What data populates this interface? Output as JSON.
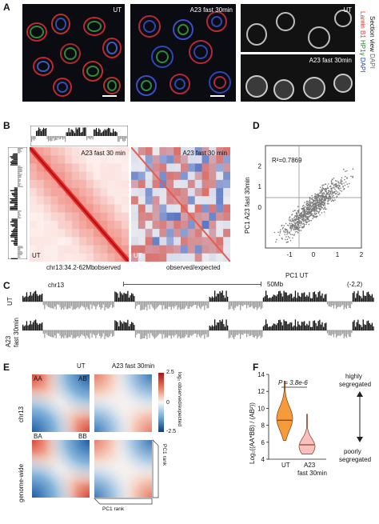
{
  "panels": {
    "A": {
      "label": "A",
      "img_ut": "UT",
      "img_a23": "A23  fast 30min",
      "img_sec_ut": "UT",
      "img_sec_a23": "A23  fast 30min",
      "legend": {
        "lamin": "Lamin B1",
        "hp1": "HP1γ",
        "dapi": "DAPI",
        "section": "Section view",
        "dapi2": "DAPI",
        "lamin_color": "#e53935",
        "hp1_color": "#2e7d32",
        "dapi_color": "#1e3fbf"
      }
    },
    "B": {
      "label": "B",
      "map1_title": "A23 fast 30 min",
      "map1_corner": "UT",
      "map2_title": "A23 fast 30 min",
      "map2_corner": "UT",
      "region": "chr13:34.2-62Mb",
      "observed": "observed",
      "obs_exp": "observed/expected"
    },
    "C": {
      "label": "C",
      "chrom": "chr13",
      "scale": "50Mb",
      "range": "(-2,2)",
      "track1": "UT",
      "track2_l1": "A23",
      "track2_l2": "fast 30min"
    },
    "D": {
      "label": "D",
      "r2": "R²=0.7869",
      "xlabel": "PC1  UT",
      "ylabel": "PC1  A23 fast 30min",
      "xticks": [
        "-1",
        "0",
        "1",
        "2"
      ],
      "yticks": [
        "0",
        "1",
        "2"
      ]
    },
    "E": {
      "label": "E",
      "col_ut": "UT",
      "col_a23": "A23 fast 30min",
      "row1": "chr13",
      "row2": "genome-wide",
      "aa": "AA",
      "ab": "AB",
      "ba": "BA",
      "bb": "BB",
      "cbar_top": "2.5",
      "cbar_mid": "0",
      "cbar_bot": "-2.5",
      "cbar_label": "log₂ observed/expected",
      "pc1_rank_right": "PC1 rank",
      "pc1_rank_bottom": "PC1 rank"
    },
    "F": {
      "label": "F",
      "pvalue": "P = 3.8e-6",
      "ylabel": "Log₂((AA*BB) / (AB²))",
      "yticks": [
        "14",
        "12",
        "10",
        "8",
        "6",
        "4"
      ],
      "x_ut": "UT",
      "x_a23_l1": "A23",
      "x_a23_l2": "fast 30min",
      "highly": "highly",
      "segregated1": "segregated",
      "poorly": "poorly",
      "segregated2": "segregated",
      "ut_color": "#f59b3a",
      "a23_color": "#f8c1bd"
    }
  },
  "chart_data": [
    {
      "type": "scatter",
      "panel": "D",
      "xlabel": "PC1  UT",
      "ylabel": "PC1  A23 fast 30min",
      "xlim": [
        -2,
        2
      ],
      "ylim": [
        -2,
        3
      ],
      "r_squared": 0.7869,
      "trend": "positive linear, slope ~1"
    },
    {
      "type": "violin",
      "panel": "F",
      "categories": [
        "UT",
        "A23 fast 30min"
      ],
      "ylim": [
        4,
        14
      ],
      "medians": [
        8.6,
        5.7
      ],
      "ranges": [
        [
          6.2,
          13.2
        ],
        [
          4.6,
          9.3
        ]
      ],
      "pvalue": "3.8e-6"
    }
  ]
}
